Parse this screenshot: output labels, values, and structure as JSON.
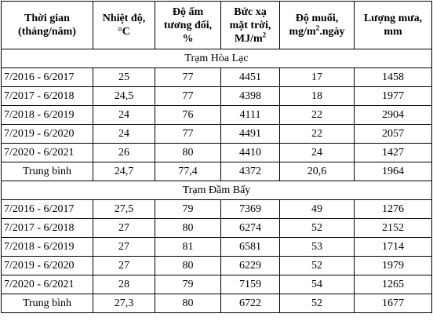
{
  "headers": {
    "time": [
      "Thời gian",
      "(tháng/năm)"
    ],
    "temperature": [
      "Nhiệt độ,",
      "°C"
    ],
    "humidity": [
      "Độ ẩm",
      "tương đối,",
      "%"
    ],
    "radiation": [
      "Bức xạ",
      "mặt trời,",
      "MJ/m",
      "2"
    ],
    "salinity": [
      "Độ muối,",
      "mg/m",
      "2",
      ".ngày"
    ],
    "rainfall": [
      "Lượng mưa,",
      "mm"
    ]
  },
  "stations": [
    {
      "name": "Trạm Hòa Lạc",
      "rows": [
        {
          "period": "7/2016 - 6/2017",
          "temperature": "25",
          "humidity": "77",
          "radiation": "4451",
          "salinity": "17",
          "rainfall": "1458"
        },
        {
          "period": "7/2017 - 6/2018",
          "temperature": "24,5",
          "humidity": "77",
          "radiation": "4398",
          "salinity": "18",
          "rainfall": "1977"
        },
        {
          "period": "7/2018 - 6/2019",
          "temperature": "24",
          "humidity": "76",
          "radiation": "4111",
          "salinity": "22",
          "rainfall": "2904"
        },
        {
          "period": "7/2019 - 6/2020",
          "temperature": "24",
          "humidity": "77",
          "radiation": "4491",
          "salinity": "22",
          "rainfall": "2057"
        },
        {
          "period": "7/2020 - 6/2021",
          "temperature": "26",
          "humidity": "80",
          "radiation": "4410",
          "salinity": "24",
          "rainfall": "1427"
        }
      ],
      "average": {
        "label": "Trung bình",
        "temperature": "24,7",
        "humidity": "77,4",
        "radiation": "4372",
        "salinity": "20,6",
        "rainfall": "1964"
      }
    },
    {
      "name": "Trạm Đầm Bấy",
      "rows": [
        {
          "period": "7/2016 - 6/2017",
          "temperature": "27,5",
          "humidity": "79",
          "radiation": "7369",
          "salinity": "49",
          "rainfall": "1276"
        },
        {
          "period": "7/2017 - 6/2018",
          "temperature": "27",
          "humidity": "80",
          "radiation": "6274",
          "salinity": "52",
          "rainfall": "2152"
        },
        {
          "period": "7/2018 - 6/2019",
          "temperature": "27",
          "humidity": "81",
          "radiation": "6581",
          "salinity": "53",
          "rainfall": "1714"
        },
        {
          "period": "7/2019 - 6/2020",
          "temperature": "27",
          "humidity": "80",
          "radiation": "6229",
          "salinity": "52",
          "rainfall": "1979"
        },
        {
          "period": "7/2020 - 6/2021",
          "temperature": "28",
          "humidity": "79",
          "radiation": "7159",
          "salinity": "54",
          "rainfall": "1265"
        }
      ],
      "average": {
        "label": "Trung bình",
        "temperature": "27,3",
        "humidity": "80",
        "radiation": "6722",
        "salinity": "52",
        "rainfall": "1677"
      }
    }
  ]
}
